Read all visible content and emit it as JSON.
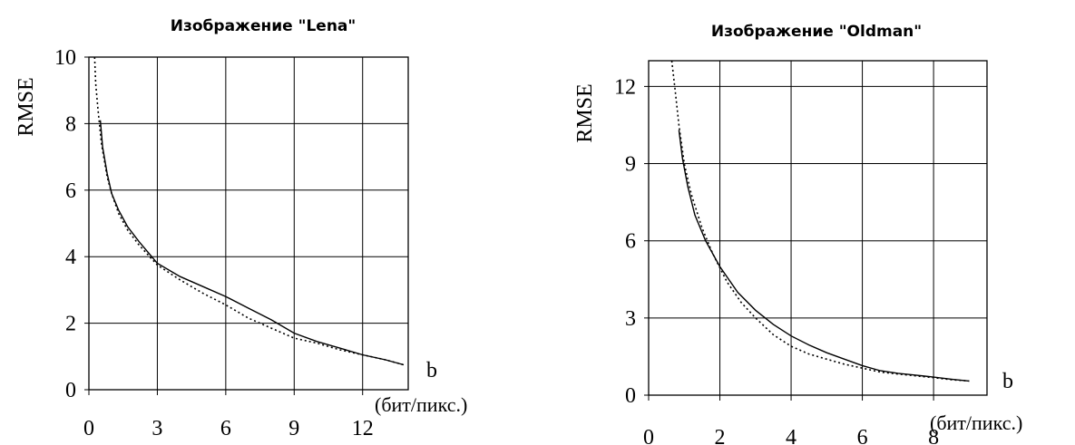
{
  "chart_data": [
    {
      "type": "line",
      "title": "Изображение \"Lena\"",
      "ylabel": "RMSE",
      "xlabel": "b",
      "xunit": "(бит/пикс.)",
      "xlim": [
        0,
        14
      ],
      "ylim": [
        0,
        10
      ],
      "xticks": [
        "0",
        "3",
        "6",
        "9",
        "12"
      ],
      "yticks": [
        "0",
        "2",
        "4",
        "6",
        "8",
        "10"
      ],
      "grid": true,
      "series": [
        {
          "style": "solid",
          "x": [
            0.5,
            0.6,
            0.8,
            1.0,
            1.3,
            1.7,
            2.2,
            3.0,
            4.0,
            5.0,
            6.0,
            7.0,
            8.0,
            9.0,
            10.0,
            11.0,
            12.0,
            13.0,
            13.8
          ],
          "y": [
            8.1,
            7.3,
            6.5,
            5.9,
            5.4,
            4.9,
            4.45,
            3.8,
            3.4,
            3.1,
            2.8,
            2.45,
            2.1,
            1.7,
            1.45,
            1.25,
            1.05,
            0.9,
            0.75
          ]
        },
        {
          "style": "dotted",
          "x": [
            0.25,
            0.3,
            0.4,
            0.55,
            0.8,
            1.0,
            1.3,
            1.7,
            2.2,
            3.0,
            4.0,
            5.0,
            6.0,
            7.0,
            8.0,
            9.0,
            10.0,
            11.0,
            12.0,
            13.0,
            13.8
          ],
          "y": [
            10.0,
            9.2,
            8.4,
            7.4,
            6.4,
            5.9,
            5.3,
            4.8,
            4.35,
            3.75,
            3.3,
            2.9,
            2.55,
            2.15,
            1.85,
            1.55,
            1.4,
            1.2,
            1.05,
            0.9,
            0.75
          ]
        }
      ]
    },
    {
      "type": "line",
      "title": "Изображение \"Oldman\"",
      "ylabel": "RMSE",
      "xlabel": "b",
      "xunit": "(бит/пикс.)",
      "xlim": [
        0,
        9.5
      ],
      "ylim": [
        0,
        13
      ],
      "xticks": [
        "0",
        "2",
        "4",
        "6",
        "8"
      ],
      "yticks": [
        "0",
        "3",
        "6",
        "9",
        "12"
      ],
      "grid": true,
      "series": [
        {
          "style": "solid",
          "x": [
            0.85,
            0.95,
            1.1,
            1.3,
            1.6,
            2.0,
            2.5,
            3.0,
            3.5,
            4.0,
            4.5,
            5.0,
            5.5,
            6.0,
            6.5,
            7.0,
            7.5,
            8.0,
            8.5,
            9.0
          ],
          "y": [
            10.3,
            9.2,
            8.1,
            7.0,
            6.0,
            5.0,
            4.0,
            3.3,
            2.75,
            2.3,
            1.95,
            1.65,
            1.4,
            1.15,
            0.95,
            0.85,
            0.78,
            0.7,
            0.62,
            0.55
          ]
        },
        {
          "style": "dotted",
          "x": [
            0.65,
            0.75,
            0.85,
            1.0,
            1.2,
            1.5,
            1.8,
            2.2,
            2.6,
            3.0,
            3.5,
            4.0,
            4.5,
            5.0,
            5.5,
            6.0,
            6.5,
            7.0,
            7.5,
            8.0,
            8.5,
            9.0
          ],
          "y": [
            13.0,
            11.8,
            10.5,
            9.0,
            7.8,
            6.5,
            5.5,
            4.4,
            3.6,
            3.0,
            2.35,
            1.9,
            1.6,
            1.4,
            1.2,
            1.05,
            0.9,
            0.82,
            0.75,
            0.68,
            0.6,
            0.55
          ]
        }
      ]
    }
  ]
}
